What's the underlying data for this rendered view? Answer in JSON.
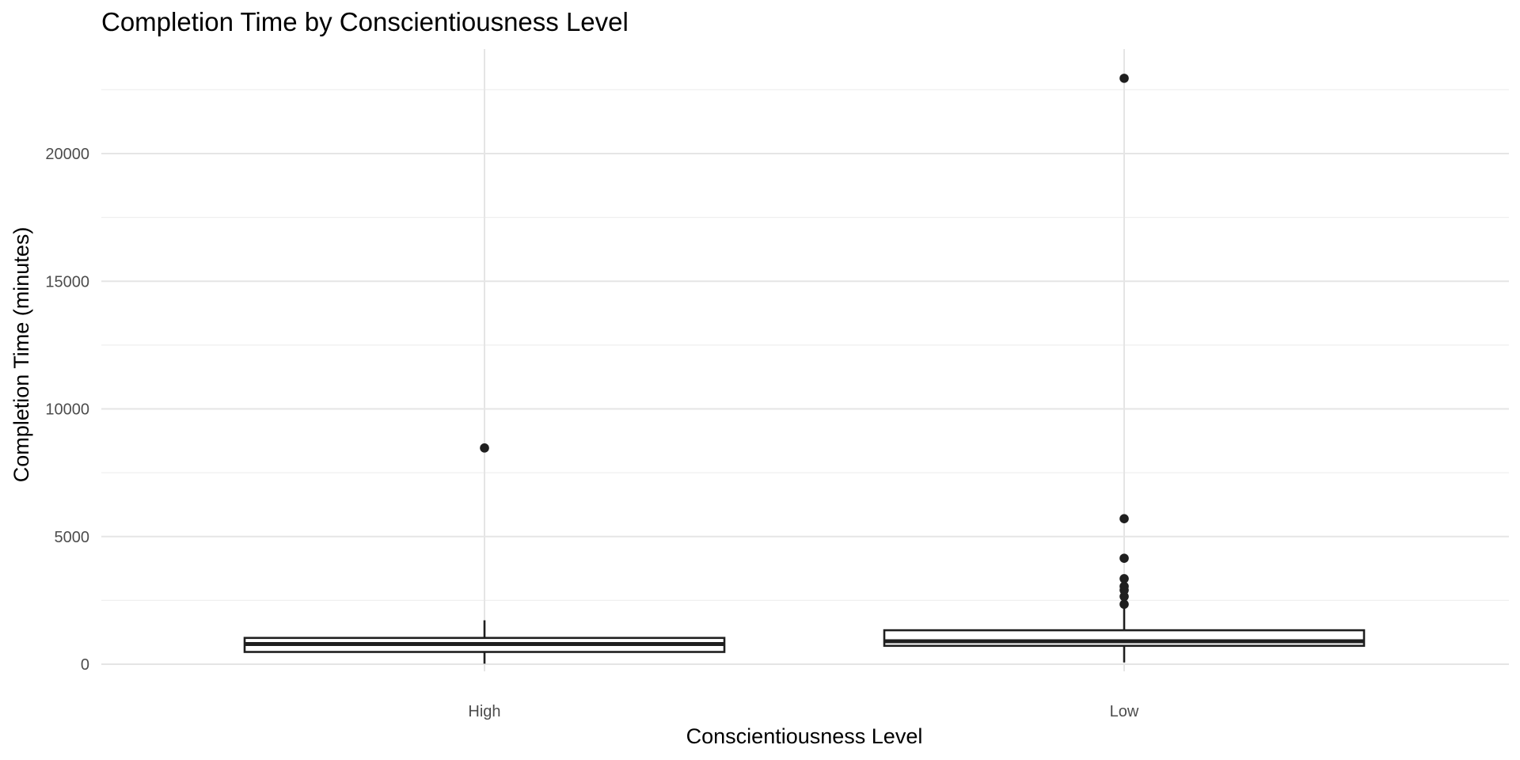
{
  "chart_data": {
    "type": "boxplot",
    "title": "Completion Time by Conscientiousness Level",
    "xlabel": "Conscientiousness Level",
    "ylabel": "Completion Time (minutes)",
    "ylim": [
      -100,
      24000
    ],
    "yticks": [
      0,
      5000,
      10000,
      15000,
      20000
    ],
    "y_minor": [
      2500,
      7500,
      12500,
      17500,
      22500
    ],
    "grid": true,
    "categories": [
      "High",
      "Low"
    ],
    "boxes": [
      {
        "category": "High",
        "whisker_low": 20,
        "q1": 480,
        "median": 790,
        "q3": 1030,
        "whisker_high": 1720,
        "outliers": [
          8470
        ]
      },
      {
        "category": "Low",
        "whisker_low": 70,
        "q1": 720,
        "median": 900,
        "q3": 1330,
        "whisker_high": 2200,
        "outliers": [
          2350,
          2650,
          2900,
          3050,
          3350,
          4150,
          5700,
          22950
        ]
      }
    ]
  }
}
